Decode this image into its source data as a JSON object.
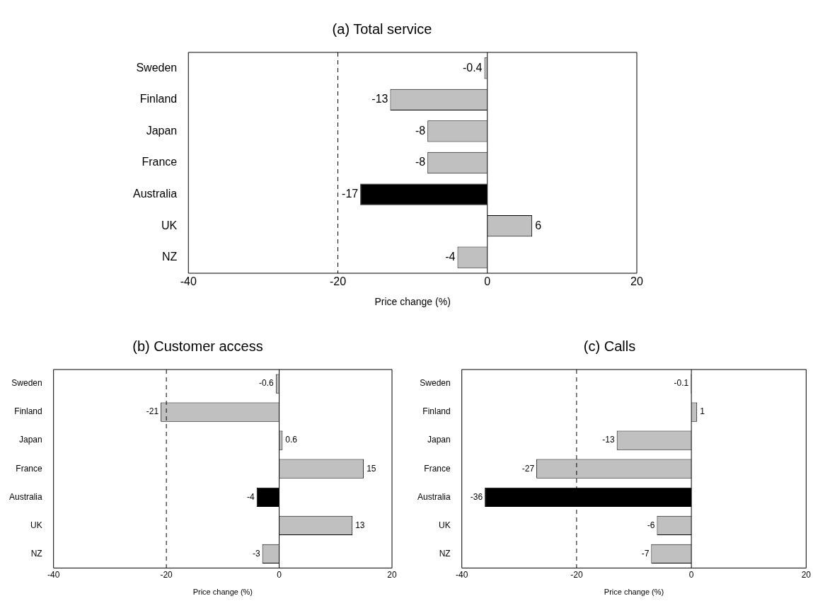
{
  "chart_data": [
    {
      "type": "bar",
      "orientation": "horizontal",
      "title": "(a) Total service",
      "xlabel": "Price change (%)",
      "categories": [
        "Sweden",
        "Finland",
        "Japan",
        "France",
        "Australia",
        "UK",
        "NZ"
      ],
      "values": [
        -0.4,
        -13,
        -8,
        -8,
        -17,
        6,
        -4
      ],
      "colors": [
        "#c0c0c0",
        "#c0c0c0",
        "#c0c0c0",
        "#c0c0c0",
        "#000000",
        "#c0c0c0",
        "#c0c0c0"
      ],
      "xlim": [
        -40,
        20
      ],
      "xticks": [
        -40,
        -20,
        0,
        20
      ],
      "ref_lines": [
        {
          "axis": "x",
          "value": -20,
          "line_style": "dashed"
        }
      ],
      "data_labels": true,
      "grid": false,
      "legend": false
    },
    {
      "type": "bar",
      "orientation": "horizontal",
      "title": "(b) Customer access",
      "xlabel": "Price change (%)",
      "categories": [
        "Sweden",
        "Finland",
        "Japan",
        "France",
        "Australia",
        "UK",
        "NZ"
      ],
      "values": [
        -0.6,
        -21,
        0.6,
        15,
        -4,
        13,
        -3
      ],
      "colors": [
        "#c0c0c0",
        "#c0c0c0",
        "#c0c0c0",
        "#c0c0c0",
        "#000000",
        "#c0c0c0",
        "#c0c0c0"
      ],
      "xlim": [
        -40,
        20
      ],
      "xticks": [
        -40,
        -20,
        0,
        20
      ],
      "ref_lines": [
        {
          "axis": "x",
          "value": -20,
          "line_style": "dashed"
        }
      ],
      "data_labels": true,
      "grid": false,
      "legend": false
    },
    {
      "type": "bar",
      "orientation": "horizontal",
      "title": "(c) Calls",
      "xlabel": "Price change (%)",
      "categories": [
        "Sweden",
        "Finland",
        "Japan",
        "France",
        "Australia",
        "UK",
        "NZ"
      ],
      "values": [
        -0.1,
        1,
        -13,
        -27,
        -36,
        -6,
        -7
      ],
      "colors": [
        "#c0c0c0",
        "#c0c0c0",
        "#c0c0c0",
        "#c0c0c0",
        "#000000",
        "#c0c0c0",
        "#c0c0c0"
      ],
      "xlim": [
        -40,
        20
      ],
      "xticks": [
        -40,
        -20,
        0,
        20
      ],
      "ref_lines": [
        {
          "axis": "x",
          "value": -20,
          "line_style": "dashed"
        }
      ],
      "data_labels": true,
      "grid": false,
      "legend": false
    }
  ]
}
